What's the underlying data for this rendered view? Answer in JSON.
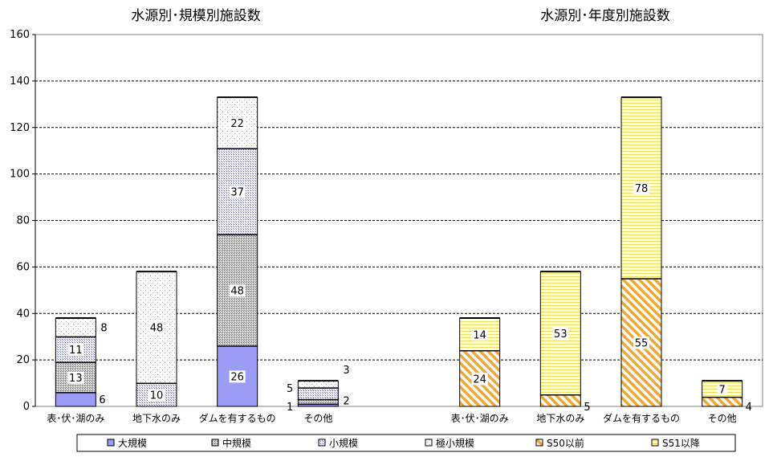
{
  "chart_data": {
    "type": "bar",
    "stacked": true,
    "ylim": [
      0,
      160
    ],
    "yticks": [
      0,
      20,
      40,
      60,
      80,
      100,
      120,
      140,
      160
    ],
    "grid": "horizontal-dashed",
    "legend_position": "bottom",
    "legend": [
      "大規模",
      "中規模",
      "小規模",
      "極小規模",
      "S50以前",
      "S51以降"
    ],
    "charts": [
      {
        "title": "水源別･規模別施設数",
        "categories": [
          "表･伏･湖のみ",
          "地下水のみ",
          "ダムを有するもの",
          "その他"
        ],
        "series": [
          {
            "name": "大規模",
            "values": [
              6,
              0,
              26,
              1
            ]
          },
          {
            "name": "中規模",
            "values": [
              13,
              0,
              48,
              2
            ]
          },
          {
            "name": "小規模",
            "values": [
              11,
              10,
              37,
              5
            ]
          },
          {
            "name": "極小規模",
            "values": [
              8,
              48,
              22,
              3
            ]
          }
        ]
      },
      {
        "title": "水源別･年度別施設数",
        "categories": [
          "表･伏･湖のみ",
          "地下水のみ",
          "ダムを有するもの",
          "その他"
        ],
        "series": [
          {
            "name": "S50以前",
            "values": [
              24,
              5,
              55,
              4
            ]
          },
          {
            "name": "S51以降",
            "values": [
              14,
              53,
              78,
              7
            ]
          }
        ]
      }
    ]
  }
}
